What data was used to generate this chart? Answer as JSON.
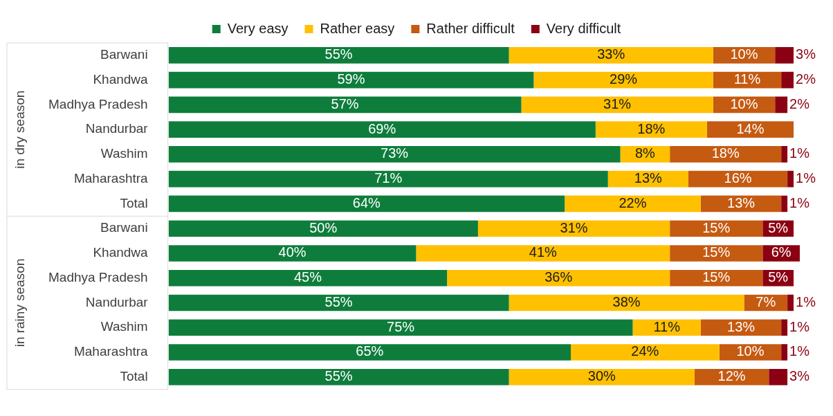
{
  "chart_data": {
    "type": "bar",
    "orientation": "horizontal",
    "stacked": true,
    "legend": "top",
    "grid": false,
    "categories": [
      "Barwani",
      "Khandwa",
      "Madhya Pradesh",
      "Nandurbar",
      "Washim",
      "Maharashtra",
      "Total",
      "Barwani",
      "Khandwa",
      "Madhya Pradesh",
      "Nandurbar",
      "Washim",
      "Maharashtra",
      "Total"
    ],
    "annotations": [
      "in dry season",
      "in rainy season"
    ],
    "series": [
      {
        "name": "Very easy",
        "color": "#0e7d3c",
        "values": [
          55,
          59,
          57,
          69,
          73,
          71,
          64,
          50,
          40,
          45,
          55,
          75,
          65,
          55
        ],
        "value_labels": [
          "55%",
          "59%",
          "57%",
          "69%",
          "73%",
          "71%",
          "64%",
          "50%",
          "40%",
          "45%",
          "55%",
          "75%",
          "65%",
          "55%"
        ]
      },
      {
        "name": "Rather easy",
        "color": "#ffc000",
        "values": [
          33,
          29,
          31,
          18,
          8,
          13,
          22,
          31,
          41,
          36,
          38,
          11,
          24,
          30
        ],
        "value_labels": [
          "33%",
          "29%",
          "31%",
          "18%",
          "8%",
          "13%",
          "22%",
          "31%",
          "41%",
          "36%",
          "38%",
          "11%",
          "24%",
          "30%"
        ]
      },
      {
        "name": "Rather difficult",
        "color": "#c55a11",
        "values": [
          10,
          11,
          10,
          14,
          18,
          16,
          13,
          15,
          15,
          15,
          7,
          13,
          10,
          12
        ],
        "value_labels": [
          "10%",
          "11%",
          "10%",
          "14%",
          "18%",
          "16%",
          "13%",
          "15%",
          "15%",
          "15%",
          "7%",
          "13%",
          "10%",
          "12%"
        ]
      },
      {
        "name": "Very difficult",
        "color": "#8b0012",
        "values": [
          3,
          2,
          2,
          null,
          1,
          1,
          1,
          5,
          6,
          5,
          1,
          1,
          1,
          3
        ],
        "value_labels": [
          "3%",
          "2%",
          "2%",
          null,
          "1%",
          "1%",
          "1%",
          "5%",
          "6%",
          "5%",
          "1%",
          "1%",
          "1%",
          "3%"
        ]
      }
    ]
  }
}
